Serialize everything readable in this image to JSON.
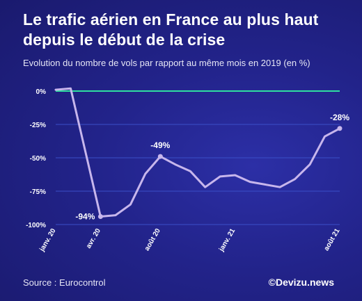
{
  "header": {
    "title": "Le trafic aérien en France au plus haut depuis le début de la crise",
    "subtitle": "Evolution du nombre de vols par rapport au même mois en 2019 (en %)"
  },
  "footer": {
    "source": "Source : Eurocontrol",
    "brand": "©Devizu.news"
  },
  "colors": {
    "line": "#c7b6ec",
    "baseline": "#2fe0a0",
    "grid": "#3a4fc8",
    "text": "#ffffff"
  },
  "chart_data": {
    "type": "line",
    "title": "Le trafic aérien en France au plus haut depuis le début de la crise",
    "subtitle": "Evolution du nombre de vols par rapport au même mois en 2019 (en %)",
    "xlabel": "",
    "ylabel": "",
    "ylim": [
      -100,
      0
    ],
    "y_ticks": [
      0,
      -25,
      -50,
      -75,
      -100
    ],
    "y_tick_labels": [
      "0%",
      "-25%",
      "-50%",
      "-75%",
      "-100%"
    ],
    "x_tick_labels": [
      {
        "index": 0,
        "label": "janv. 20"
      },
      {
        "index": 3,
        "label": "avr. 20"
      },
      {
        "index": 7,
        "label": "août 20"
      },
      {
        "index": 12,
        "label": "janv. 21"
      },
      {
        "index": 19,
        "label": "août 21"
      }
    ],
    "grid": true,
    "series": [
      {
        "values": [
          1,
          2,
          -94,
          -93,
          -85,
          -62,
          -49,
          -55,
          -60,
          -72,
          -64,
          -63,
          -68,
          -70,
          -72,
          -66,
          -55,
          -34,
          -28
        ],
        "x": [
          0,
          1,
          3,
          4,
          5,
          6,
          7,
          8,
          9,
          10,
          11,
          12,
          13,
          14,
          15,
          16,
          17,
          18,
          19
        ]
      }
    ],
    "annotations": [
      {
        "index": 3,
        "value": -94,
        "label": "-94%"
      },
      {
        "index": 7,
        "value": -49,
        "label": "-49%"
      },
      {
        "index": 19,
        "value": -28,
        "label": "-28%"
      }
    ]
  }
}
